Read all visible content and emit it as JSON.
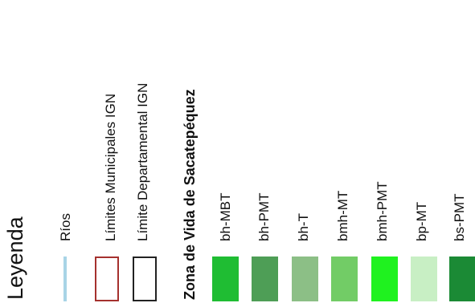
{
  "legend": {
    "title": "Leyenda",
    "rivers": {
      "label": "Ríos",
      "color": "#a8d4e6"
    },
    "municipal": {
      "label": "Límites Municipales IGN",
      "border_color": "#a5312e"
    },
    "departmental": {
      "label": "Límite Departamental IGN",
      "border_color": "#222222"
    },
    "zones_title": "Zona de Vida de Sacatepéquez",
    "zones": [
      {
        "label": "bh-MBT",
        "color": "#1fbd33"
      },
      {
        "label": "bh-PMT",
        "color": "#4e9e56"
      },
      {
        "label": "bh-T",
        "color": "#8cbf86"
      },
      {
        "label": "bmh-MT",
        "color": "#72cc66"
      },
      {
        "label": "bmh-PMT",
        "color": "#1ff21f"
      },
      {
        "label": "bp-MT",
        "color": "#c8efc4"
      },
      {
        "label": "bs-PMT",
        "color": "#1b8a35"
      }
    ]
  }
}
